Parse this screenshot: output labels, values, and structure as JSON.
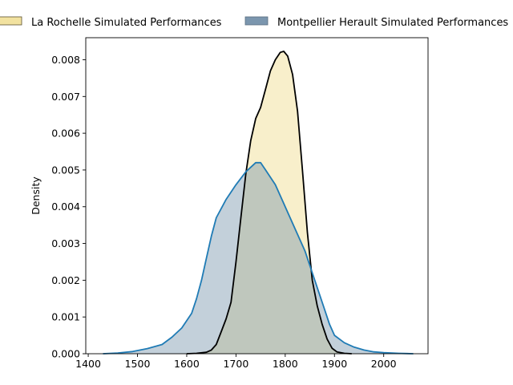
{
  "chart_data": {
    "type": "area",
    "title": "",
    "xlabel": "",
    "ylabel": "Density",
    "xlim": [
      1395,
      2090
    ],
    "ylim": [
      0,
      0.0086
    ],
    "x_ticks": [
      1400,
      1500,
      1600,
      1700,
      1800,
      1900,
      2000
    ],
    "x_tick_labels": [
      "1400",
      "1500",
      "1600",
      "1700",
      "1800",
      "1900",
      "2000"
    ],
    "y_ticks": [
      0,
      0.001,
      0.002,
      0.003,
      0.004,
      0.005,
      0.006,
      0.007,
      0.008
    ],
    "y_tick_labels": [
      "0.000",
      "0.001",
      "0.002",
      "0.003",
      "0.004",
      "0.005",
      "0.006",
      "0.007",
      "0.008"
    ],
    "grid": false,
    "legend_position": "top",
    "series": [
      {
        "name": "La Rochelle Simulated Performances",
        "fill_color": "#f2e2a0",
        "fill_opacity": 0.55,
        "line_color": "#000000",
        "points": [
          [
            1600,
            0
          ],
          [
            1620,
            1e-05
          ],
          [
            1640,
            4e-05
          ],
          [
            1650,
            0.0001
          ],
          [
            1660,
            0.00025
          ],
          [
            1670,
            0.0006
          ],
          [
            1680,
            0.00095
          ],
          [
            1690,
            0.0014
          ],
          [
            1700,
            0.0025
          ],
          [
            1710,
            0.0037
          ],
          [
            1720,
            0.0049
          ],
          [
            1730,
            0.0058
          ],
          [
            1740,
            0.0064
          ],
          [
            1750,
            0.0067
          ],
          [
            1760,
            0.0072
          ],
          [
            1770,
            0.0077
          ],
          [
            1780,
            0.008
          ],
          [
            1790,
            0.0082
          ],
          [
            1797,
            0.00823
          ],
          [
            1805,
            0.0081
          ],
          [
            1815,
            0.0076
          ],
          [
            1825,
            0.0066
          ],
          [
            1835,
            0.005
          ],
          [
            1845,
            0.0033
          ],
          [
            1855,
            0.002
          ],
          [
            1865,
            0.0013
          ],
          [
            1875,
            0.0008
          ],
          [
            1885,
            0.0004
          ],
          [
            1895,
            0.00015
          ],
          [
            1905,
            5e-05
          ],
          [
            1920,
            1e-05
          ],
          [
            1935,
            0
          ]
        ]
      },
      {
        "name": "Montpellier Herault Simulated Performances",
        "fill_color": "#7b96ae",
        "fill_opacity": 0.45,
        "line_color": "#1f7bb5",
        "points": [
          [
            1430,
            0
          ],
          [
            1460,
            2e-05
          ],
          [
            1490,
            6e-05
          ],
          [
            1520,
            0.00014
          ],
          [
            1550,
            0.00025
          ],
          [
            1570,
            0.00045
          ],
          [
            1590,
            0.0007
          ],
          [
            1610,
            0.0011
          ],
          [
            1620,
            0.0015
          ],
          [
            1630,
            0.002
          ],
          [
            1640,
            0.0026
          ],
          [
            1650,
            0.0032
          ],
          [
            1660,
            0.0037
          ],
          [
            1680,
            0.0042
          ],
          [
            1700,
            0.0046
          ],
          [
            1720,
            0.00495
          ],
          [
            1740,
            0.0052
          ],
          [
            1750,
            0.0052
          ],
          [
            1760,
            0.005
          ],
          [
            1780,
            0.0046
          ],
          [
            1800,
            0.004
          ],
          [
            1820,
            0.0034
          ],
          [
            1840,
            0.0028
          ],
          [
            1860,
            0.002
          ],
          [
            1880,
            0.0012
          ],
          [
            1890,
            0.0008
          ],
          [
            1900,
            0.0005
          ],
          [
            1920,
            0.0003
          ],
          [
            1940,
            0.00018
          ],
          [
            1960,
            0.0001
          ],
          [
            1980,
            5e-05
          ],
          [
            2000,
            3e-05
          ],
          [
            2030,
            1e-05
          ],
          [
            2060,
            0
          ]
        ]
      }
    ]
  }
}
